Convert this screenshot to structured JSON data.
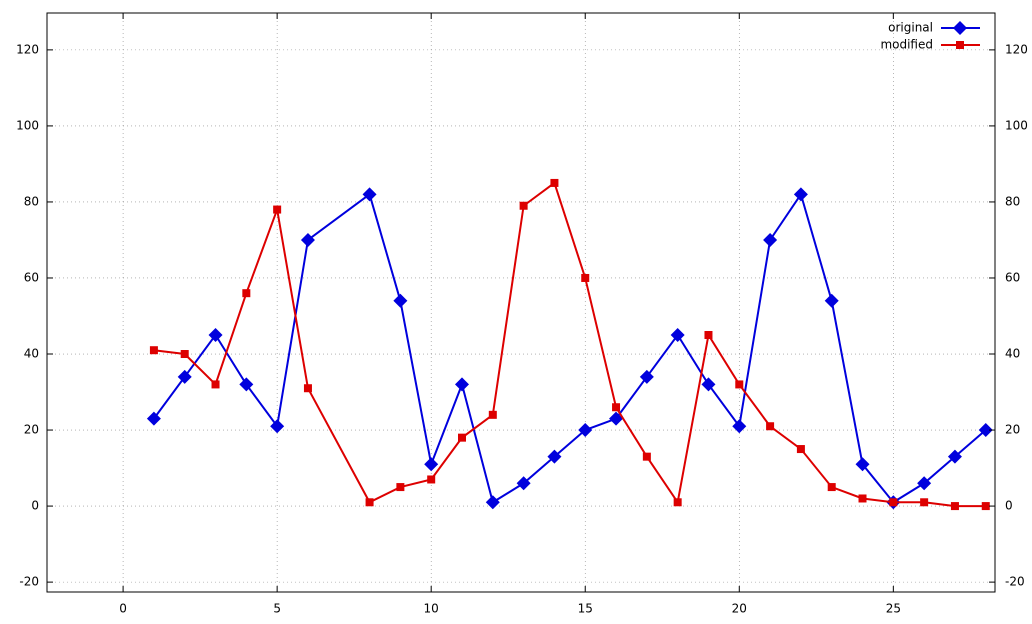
{
  "chart_data": {
    "type": "line",
    "x": [
      1,
      2,
      3,
      4,
      5,
      6,
      8,
      9,
      10,
      11,
      12,
      13,
      14,
      15,
      16,
      17,
      18,
      19,
      20,
      21,
      22,
      23,
      24,
      25,
      26,
      27,
      28
    ],
    "series": [
      {
        "name": "original",
        "color": "#0000dd",
        "marker": "diamond",
        "values": [
          23,
          34,
          45,
          32,
          21,
          70,
          82,
          54,
          11,
          32,
          1,
          6,
          13,
          20,
          23,
          34,
          45,
          32,
          21,
          70,
          82,
          54,
          11,
          1,
          6,
          13,
          20
        ]
      },
      {
        "name": "modified",
        "color": "#dd0000",
        "marker": "square",
        "values": [
          41,
          40,
          32,
          56,
          78,
          31,
          1,
          5,
          7,
          18,
          24,
          79,
          85,
          60,
          26,
          13,
          1,
          45,
          32,
          21,
          15,
          5,
          2,
          1,
          1,
          0,
          0
        ]
      }
    ],
    "xlim": [
      -2.47,
      28.3
    ],
    "xticks": [
      0,
      5,
      10,
      15,
      20,
      25
    ],
    "ylim": [
      -22.6,
      129.7
    ],
    "yticks": [
      -20,
      0,
      20,
      40,
      60,
      80,
      100,
      120
    ],
    "y2lim": [
      -22.6,
      129.7
    ],
    "y2ticks": [
      -20,
      0,
      20,
      40,
      60,
      80,
      100,
      120
    ],
    "grid": true,
    "legend": "top-right"
  }
}
